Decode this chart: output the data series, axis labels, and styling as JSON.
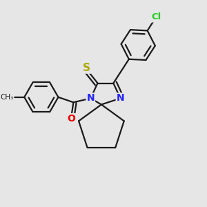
{
  "bg_color": "#e6e6e6",
  "bond_color": "#1a1a1a",
  "bond_width": 1.6,
  "atom_colors": {
    "N": "#2222ff",
    "O": "#ee0000",
    "S": "#aaaa00",
    "Cl": "#22cc22",
    "C": "#1a1a1a"
  },
  "font_size_atom": 10,
  "font_size_small": 8.5
}
